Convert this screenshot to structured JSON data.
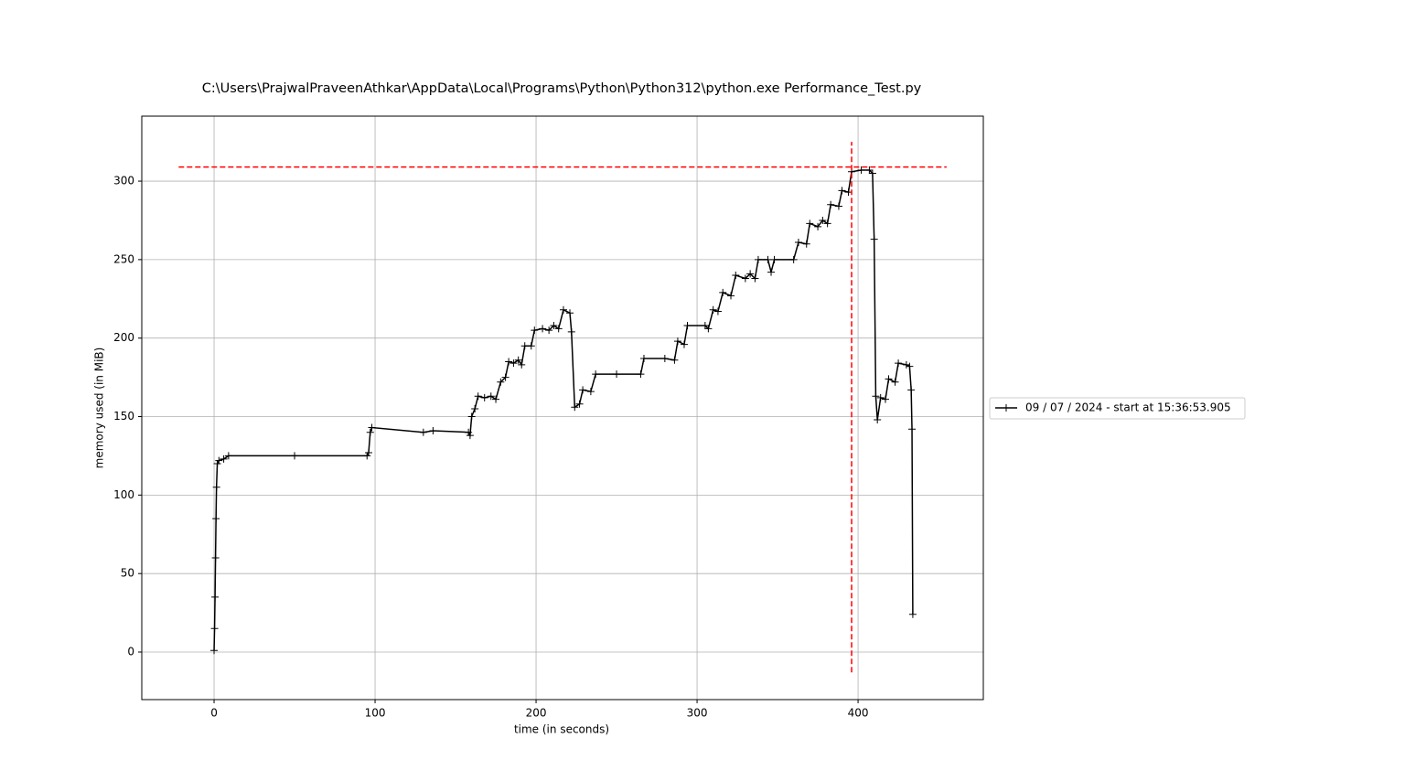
{
  "chart_data": {
    "type": "line",
    "title": "C:\\Users\\PrajwalPraveenAthkar\\AppData\\Local\\Programs\\Python\\Python312\\python.exe Performance_Test.py",
    "x_label": "time (in seconds)",
    "y_label": "memory used (in MiB)",
    "xlim": [
      -44.9,
      477.8
    ],
    "ylim": [
      -30.3,
      341.4
    ],
    "xticks": [
      0,
      100,
      200,
      300,
      400
    ],
    "yticks": [
      0,
      50,
      100,
      150,
      200,
      250,
      300
    ],
    "grid": true,
    "legend": "right outside",
    "max_hline": {
      "y": 309,
      "x": [
        -22,
        455
      ],
      "color": "#ff0000"
    },
    "max_vline": {
      "x": 396,
      "y": [
        -13,
        325
      ],
      "color": "#ff0000"
    },
    "series": [
      {
        "name": "09 / 07 / 2024 - start at 15:36:53.905",
        "color": "#000000",
        "x": [
          0,
          0.3,
          0.6,
          0.9,
          1.2,
          1.5,
          2,
          3,
          6,
          9,
          50,
          95,
          96,
          97,
          98,
          130,
          136,
          158,
          159,
          160,
          162,
          164,
          168,
          172,
          175,
          178,
          181,
          183,
          186,
          189,
          191,
          193,
          197,
          199,
          204,
          208,
          211,
          214,
          217,
          221,
          222,
          224,
          227,
          229,
          234,
          237,
          250,
          265,
          267,
          280,
          286,
          288,
          292,
          294,
          305,
          307,
          310,
          313,
          316,
          321,
          324,
          330,
          333,
          336,
          338,
          344,
          346,
          348,
          360,
          363,
          368,
          370,
          375,
          378,
          381,
          383,
          388,
          390,
          394,
          396,
          402,
          407,
          409,
          410,
          411,
          412,
          414,
          417,
          419,
          423,
          425,
          430,
          432,
          433,
          433.5,
          434
        ],
        "values": [
          1,
          15,
          35,
          60,
          85,
          105,
          120,
          122,
          123,
          125,
          125,
          125,
          127,
          140,
          143,
          140,
          141,
          140,
          138,
          150,
          155,
          163,
          162,
          163,
          161,
          172,
          175,
          185,
          184,
          186,
          183,
          195,
          195,
          205,
          206,
          205,
          208,
          206,
          218,
          216,
          204,
          156,
          158,
          167,
          166,
          177,
          177,
          177,
          187,
          187,
          186,
          198,
          196,
          208,
          208,
          206,
          218,
          217,
          229,
          227,
          240,
          238,
          241,
          238,
          250,
          250,
          242,
          250,
          250,
          261,
          260,
          273,
          271,
          275,
          273,
          285,
          284,
          294,
          293,
          306,
          307,
          307,
          305,
          263,
          163,
          148,
          162,
          161,
          174,
          172,
          184,
          183,
          182,
          167,
          142,
          24
        ]
      }
    ]
  }
}
